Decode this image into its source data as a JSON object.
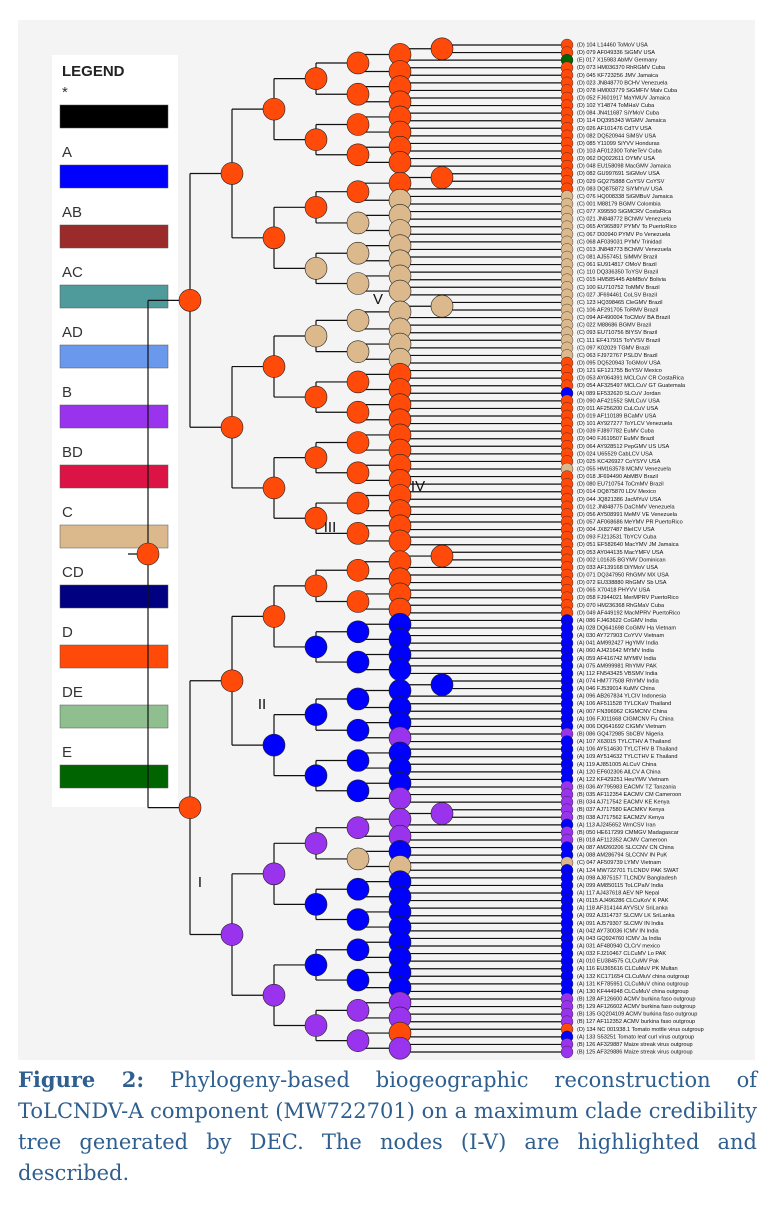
{
  "figure": {
    "legend": {
      "title": "LEGEND",
      "items": [
        {
          "name": "*",
          "color": "#000000"
        },
        {
          "name": "A",
          "color": "#0000ff"
        },
        {
          "name": "AB",
          "color": "#9b2a2a"
        },
        {
          "name": "AC",
          "color": "#4f9a9a"
        },
        {
          "name": "AD",
          "color": "#6a98ec"
        },
        {
          "name": "B",
          "color": "#9a33ee"
        },
        {
          "name": "BD",
          "color": "#dc1446"
        },
        {
          "name": "C",
          "color": "#dcb98c"
        },
        {
          "name": "CD",
          "color": "#000080"
        },
        {
          "name": "D",
          "color": "#ff4a0a"
        },
        {
          "name": "DE",
          "color": "#8fbf8f"
        },
        {
          "name": "E",
          "color": "#006400"
        }
      ]
    },
    "node_labels": [
      "I",
      "II",
      "III",
      "IV",
      "V"
    ],
    "leaves": [
      "(D) 104 L14460 ToMoV USA",
      "(D) 079 AF049336 SiGMV USA",
      "(E) 017 X15983 AbMV Germany",
      "(D) 073 HM036370 RhRGMV Cuba",
      "(D) 045 KF723256 JMV Jamaica",
      "(D) 023 JN848770 BCHV Venezuela",
      "(D) 078 HM003779 SiGMFIV Malv Cuba",
      "(D) 052 FJ601917 MaYMUV Jamaica",
      "(D) 102 Y14874 ToMHaV Cuba",
      "(D) 084 JN411687 SiYMoV Cuba",
      "(D) 114 DQ395343 WGMV Jamaica",
      "(D) 026 AF101476 CdTV USA",
      "(D) 082 DQ520944 SiMSV USA",
      "(D) 085 Y11099 SiYVV Honduras",
      "(D) 103 AF012300 ToNeTeV Cuba",
      "(D) 062 DQ022611 OYMV USA",
      "(D) 048 EU158098 MacGMV Jamaica",
      "(D) 082 GU997691 SiGMoV USA",
      "(D) 029 GQ275888 CoYSV CoYSV",
      "(D) 083 DQ875872 SiYMYuV USA",
      "(C) 076 HQ008338 SiGMBuV Jamaica",
      "(C) 001 M88179 BGMV Colombia",
      "(C) 077 X99550 SiGMCRV CostaRica",
      "(C) 021 JN848772 BChMV Venezuela",
      "(C) 065 AY965897 PYMV To PuertoRico",
      "(C) 067 D00940 PYMV Po Venezuela",
      "(C) 068 AF039031 PYMV Trinidad",
      "(C) 013 JN848773 BChMV Venezuela",
      "(C) 081 AJ557451 SiMMV Brazil",
      "(C) 061 EU914817 OMoV Brazil",
      "(C) 110 DQ336350 ToYSV Brazil",
      "(C) 015 HM585445 AbMBoV Bolivia",
      "(C) 100 EU710752 ToMMV Brazil",
      "(C) 027 JF694461 CoLSV Brazil",
      "(C) 123 HQ398465 CleGMV Brazil",
      "(C) 106 AF291705 ToRMV Brazil",
      "(C) 094 AF490004 ToCMoV BA Brazil",
      "(C) 022 M88686 BGMV Brazil",
      "(C) 093 EU710756 BIYSV Brazil",
      "(C) 111 EF417915 ToYVSV Brazil",
      "(C) 097 K02029 TGMV Brazil",
      "(C) 063 FJ972767 PSLDV Brazil",
      "(D) 095 DQ520943 ToGMoV USA",
      "(D) 121 EF121755 BoYSV Mexico",
      "(D) 053 AY064391 MCLCuV CR CostaRica",
      "(D) 054 AF325497 MCLCuV GT Guatemala",
      "(A) 089 EF532620 SLCuV Jordan",
      "(D) 090 AF421552 SMLCuV USA",
      "(D) 011 AF256200 CuLCuV USA",
      "(D) 019 AF110189 BCaMV USA",
      "(D) 101 AY927277 ToYLCV Venezuela",
      "(D) 039 FJ897782 EuMV Cuba",
      "(D) 040 FJ619507 EuMV Brazil",
      "(D) 064 AY928512 PepGMV US USA",
      "(D) 024 U65529 CabLCV USA",
      "(D) 025 KC426927 CoYSYV USA",
      "(C) 055 HM163578 MCMV Venezuela",
      "(D) 018 JF694490 AbMBV Brazil",
      "(D) 080 EU710754 ToCmMV Brazil",
      "(D) 014 DQ875870 LDV Mexico",
      "(D) 044 JQ821386 JacMYuV USA",
      "(D) 012 JN848775 DaChMV Venezuela",
      "(D) 056 AY508991 MeMV VE Venezuela",
      "(D) 057 AF068686 MeYMV PR PuertoRico",
      "(D) 004 JX827487 BleICV USA",
      "(D) 093 FJ213531 TbYCV Cuba",
      "(D) 051 EF582640 MacYMV JM Jamaica",
      "(D) 053 AY044135 MacYMFV USA",
      "(D) 002 L01635 BGYMV Dominican",
      "(D) 033 AF139168 DiYMoV USA",
      "(D) 071 DQ347950 RhGMV MX USA",
      "(D) 072 EU338880 RhGMV Sb USA",
      "(D) 065 X70418 PHYVV USA",
      "(D) 058 FJ944021 MerMPRV PuertoRico",
      "(D) 070 HM236368 RhGMaV Cuba",
      "(D) 049 AF449192 MacMPRV PuertoRico",
      "(A) 086 FJ463622 CoGMV India",
      "(A) 028 DQ641698 CoGMV Ha Vietnam",
      "(A) 030 AY727903 CoYVV Vietnam",
      "(A) 041 AM992427 HgYMV India",
      "(A) 060 AJ421642 MYMV India",
      "(A) 059 AF416742 MYMIV India",
      "(A) 075 AM999981 RhYMV PAK",
      "(A) 112 FN543425 VBSMV India",
      "(A) 074 HM777508 RhYMV India",
      "(A) 046 FJ539014 KuMV China",
      "(A) 096 AB267834 YLCIV Indonesia",
      "(A) 106 AF511528 TYLCKaV Thailand",
      "(A) 007 FN396962 CIGMCNV China",
      "(A) 106 FJ011668 CIGMCNV Fu China",
      "(A) 006 DQ641692 CIGMV Vietnam",
      "(B) 086 GQ472985 SbCBV Nigeria",
      "(A) 107 X63015 TYLCTHV A Thailand",
      "(A) 106 AY514630 TYLCTHV B Thailand",
      "(A) 109 AY514632 TYLCTHV E Thailand",
      "(A) 119 AJ851005 ALCuV China",
      "(A) 120 EF602306 AlLCV A China",
      "(A) 122 KF429251 HeuYMV Vietnam",
      "(B) 036 AY795983 EACMV TZ Tanzania",
      "(B) 035 AF112354 EACMV CM Cameroon",
      "(B) 034 AJ717542 EACMV KE Kenya",
      "(B) 037 AJ717580 EACMKV Kenya",
      "(B) 038 AJ717562 EACMZV Kenya",
      "(A) 113 AJ245652 WmCSV Iran",
      "(B) 050 HE617299 CMMGV Madagascar",
      "(B) 018 AF112352 ACMV Cameroon",
      "(A) 087 AM260206 SLCCNV CN China",
      "(A) 088 AM286794 SLCCNV IN PuK",
      "(C) 047 AF509739 LYMV Vietnam",
      "(A) 124 MW722701 TLCNDV PAK SWAT",
      "(A) 098 AJ875157 TLCNDV Bangladesh",
      "(A) 099 AM850115 ToLCPalV India",
      "(A) 117 AJ437618 AEV NP Nepal",
      "(A) 0115 AJ496286 CLCuKoV K PAK",
      "(A) 118 AF314144 AYVSLV SriLanka",
      "(A) 092 AJ314737 SLCMV LK SriLanka",
      "(A) 091 AJ579307 SLCMV IN India",
      "(A) 042 AY730036 ICMV IN India",
      "(A) 043 GQ924760 ICMV Ja India",
      "(A) 031 AF480940 CLCrV mexico",
      "(A) 032 FJ210467 CLCuMV Lo PAK",
      "(A) 010 EU384575 CLCuMV Pak",
      "(A) 116 EU365616 CLCuMuV PK Multan",
      "(A) 132 KC171654 CLCuMuV china outgroup",
      "(A) 131 KF785951 CLCuMuV china outgroup",
      "(A) 130 KF444948 CLCuMuV china outgroup",
      "(B) 128 AF126600 ACMV burkina faso outgroup",
      "(B) 129 AF126602 ACMV burkina faso outgroup",
      "(B) 135 GQ204109 ACMV burkina faso outgroup",
      "(B) 127 AF112352 ACMV burkina faso outgroup",
      "(D) 134 NC 001938.1 Tomato mottle virus outgroup",
      "(A) 133 S53251 Tomato leaf curl virus outgroup",
      "(B) 126 AF329887 Maize streak virus outgroup",
      "(B) 125 AF329886 Maize streak virus outgroup"
    ],
    "caption": {
      "label": "Figure 2:",
      "text": "Phylogeny-based biogeographic reconstruction of ToLCNDV-A component (MW722701) on a maximum clade credibility tree generated by DEC. The  nodes (I-V) are highlighted and described."
    }
  }
}
